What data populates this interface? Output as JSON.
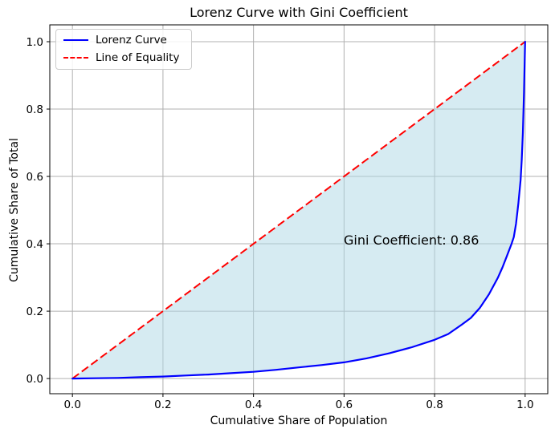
{
  "chart_data": {
    "type": "line",
    "title": "Lorenz Curve with Gini Coefficient",
    "xlabel": "Cumulative Share of Population",
    "ylabel": "Cumulative Share of Total",
    "xlim": [
      -0.05,
      1.05
    ],
    "ylim": [
      -0.045,
      1.05
    ],
    "grid": true,
    "legend_position": "upper left",
    "gini_coefficient": 0.86,
    "annotation": {
      "text": "Gini Coefficient: 0.86",
      "x": 0.6,
      "y": 0.4
    },
    "xticks": {
      "values": [
        0.0,
        0.2,
        0.4,
        0.6,
        0.8,
        1.0
      ],
      "labels": [
        "0.0",
        "0.2",
        "0.4",
        "0.6",
        "0.8",
        "1.0"
      ]
    },
    "yticks": {
      "values": [
        0.0,
        0.2,
        0.4,
        0.6,
        0.8,
        1.0
      ],
      "labels": [
        "0.0",
        "0.2",
        "0.4",
        "0.6",
        "0.8",
        "1.0"
      ]
    },
    "legend": [
      {
        "label": "Lorenz Curve",
        "color": "#0000ff",
        "style": "solid"
      },
      {
        "label": "Line of Equality",
        "color": "#ff0000",
        "style": "dashed"
      }
    ],
    "series": [
      {
        "name": "Lorenz Curve",
        "color": "#0000ff",
        "style": "solid",
        "points": [
          [
            0.0,
            0.0
          ],
          [
            0.05,
            0.001
          ],
          [
            0.1,
            0.002
          ],
          [
            0.15,
            0.004
          ],
          [
            0.2,
            0.006
          ],
          [
            0.25,
            0.009
          ],
          [
            0.3,
            0.012
          ],
          [
            0.35,
            0.016
          ],
          [
            0.4,
            0.02
          ],
          [
            0.45,
            0.026
          ],
          [
            0.5,
            0.033
          ],
          [
            0.55,
            0.04
          ],
          [
            0.6,
            0.048
          ],
          [
            0.65,
            0.06
          ],
          [
            0.7,
            0.075
          ],
          [
            0.75,
            0.093
          ],
          [
            0.8,
            0.115
          ],
          [
            0.83,
            0.132
          ],
          [
            0.86,
            0.16
          ],
          [
            0.88,
            0.18
          ],
          [
            0.9,
            0.21
          ],
          [
            0.92,
            0.25
          ],
          [
            0.94,
            0.3
          ],
          [
            0.95,
            0.33
          ],
          [
            0.96,
            0.365
          ],
          [
            0.97,
            0.4
          ],
          [
            0.975,
            0.42
          ],
          [
            0.98,
            0.46
          ],
          [
            0.985,
            0.52
          ],
          [
            0.99,
            0.59
          ],
          [
            0.9925,
            0.65
          ],
          [
            0.995,
            0.73
          ],
          [
            0.9975,
            0.85
          ],
          [
            1.0,
            1.0
          ]
        ]
      },
      {
        "name": "Line of Equality",
        "color": "#ff0000",
        "style": "dashed",
        "points": [
          [
            0.0,
            0.0
          ],
          [
            1.0,
            1.0
          ]
        ]
      }
    ],
    "fill": {
      "between": "lorenz-curve-and-line-of-equality",
      "color": "#ADD8E6",
      "opacity": 0.5
    },
    "colors": {
      "background": "#ffffff",
      "grid": "#b0b0b0",
      "spine": "#000000",
      "text": "#000000"
    }
  }
}
